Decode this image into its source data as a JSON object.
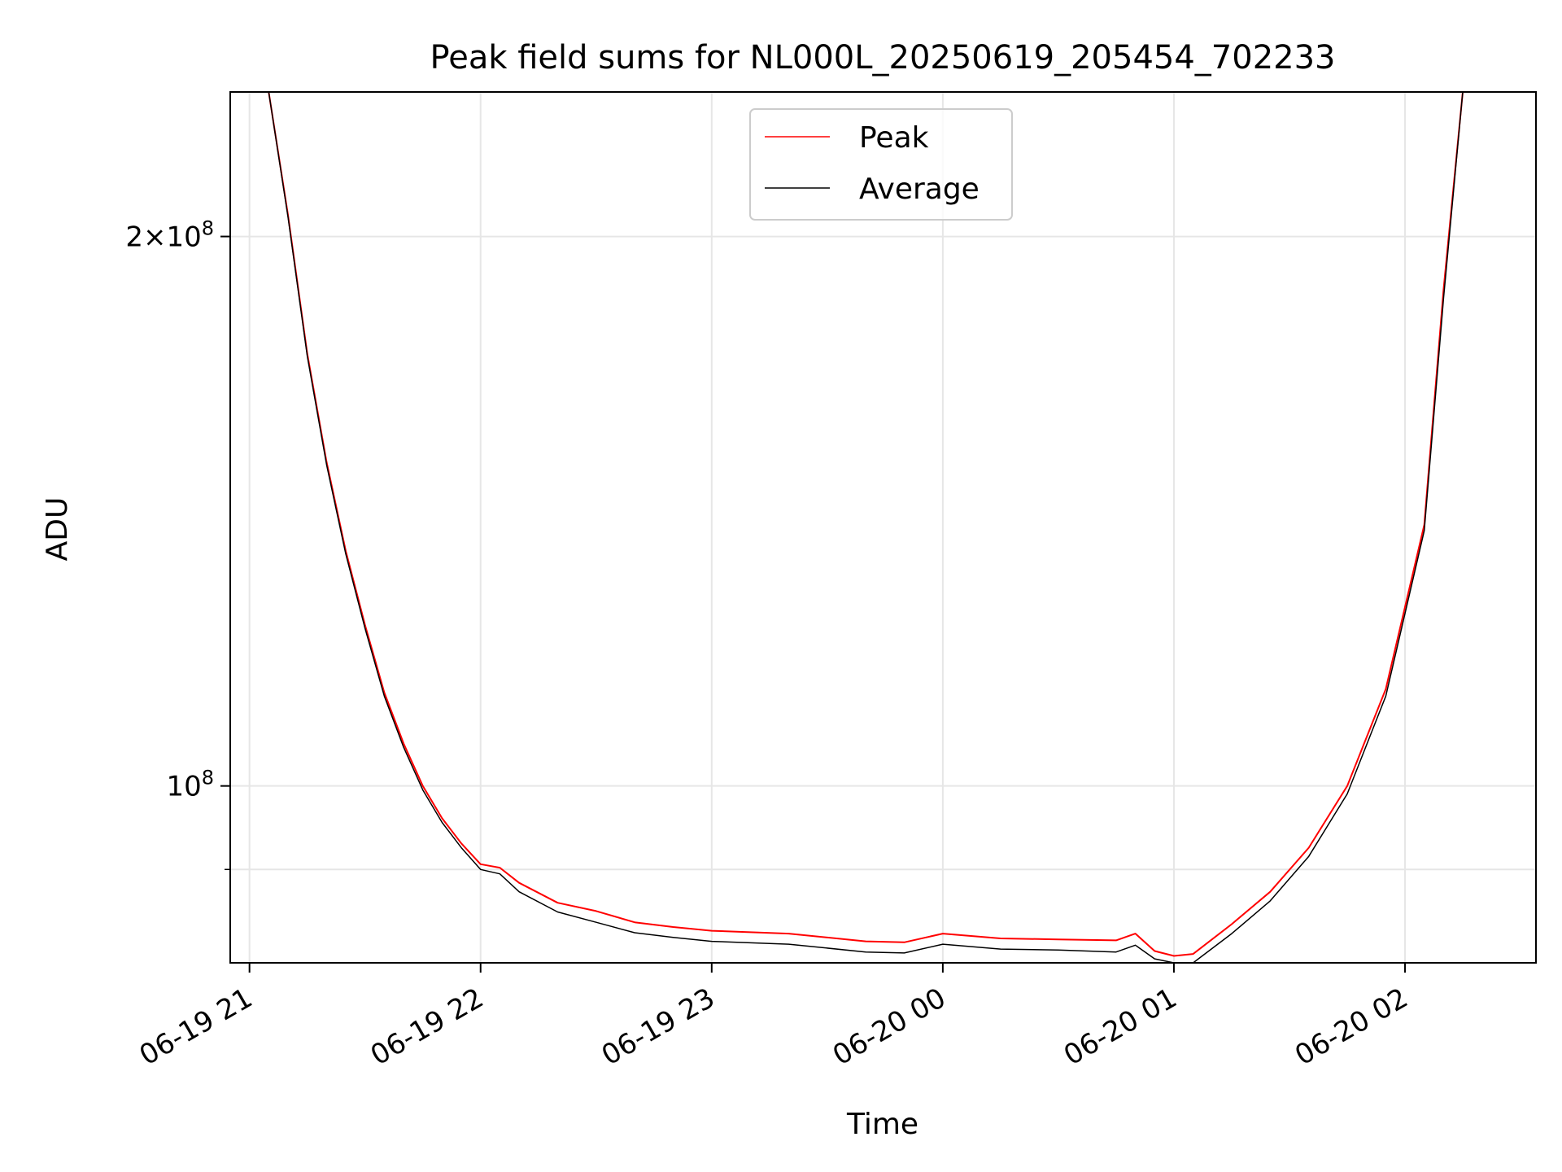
{
  "chart_data": {
    "type": "line",
    "title": "Peak field sums for NL000L_20250619_205454_702233",
    "xlabel": "Time",
    "ylabel": "ADU",
    "y_scale": "log",
    "ylim": [
      80000000,
      240000000
    ],
    "xlim": [
      "2025-06-19 20:55",
      "2025-06-20 02:34"
    ],
    "x_ticks": [
      "2025-06-19 21:00",
      "2025-06-19 22:00",
      "2025-06-19 23:00",
      "2025-06-20 00:00",
      "2025-06-20 01:00",
      "2025-06-20 02:00"
    ],
    "x_tick_labels": [
      "06-19 21",
      "06-19 22",
      "06-19 23",
      "06-20 00",
      "06-20 01",
      "06-20 02"
    ],
    "y_major_ticks": [
      100000000,
      200000000
    ],
    "y_tick_labels": [
      "10^8",
      "2×10^8"
    ],
    "y_minor_ticks": [
      90000000
    ],
    "grid": true,
    "legend_position": "top-center",
    "colors": {
      "Peak": "#ff0000",
      "Average": "#000000",
      "grid": "#e6e6e6"
    },
    "series": [
      {
        "name": "Average",
        "x": [
          "2025-06-19 21:05",
          "2025-06-19 21:10",
          "2025-06-19 21:15",
          "2025-06-19 21:20",
          "2025-06-19 21:25",
          "2025-06-19 21:30",
          "2025-06-19 21:35",
          "2025-06-19 21:40",
          "2025-06-19 21:45",
          "2025-06-19 21:50",
          "2025-06-19 21:55",
          "2025-06-19 22:00",
          "2025-06-19 22:05",
          "2025-06-19 22:10",
          "2025-06-19 22:20",
          "2025-06-19 22:30",
          "2025-06-19 22:40",
          "2025-06-19 22:50",
          "2025-06-19 23:00",
          "2025-06-19 23:20",
          "2025-06-19 23:40",
          "2025-06-19 23:50",
          "2025-06-20 00:00",
          "2025-06-20 00:15",
          "2025-06-20 00:30",
          "2025-06-20 00:45",
          "2025-06-20 00:50",
          "2025-06-20 00:55",
          "2025-06-20 01:00",
          "2025-06-20 01:05",
          "2025-06-20 01:15",
          "2025-06-20 01:25",
          "2025-06-20 01:35",
          "2025-06-20 01:45",
          "2025-06-20 01:55",
          "2025-06-20 02:05",
          "2025-06-20 02:10",
          "2025-06-20 02:15"
        ],
        "values": [
          240000000,
          205000000,
          172000000,
          150000000,
          134000000,
          122000000,
          112000000,
          105000000,
          99500000,
          95500000,
          92500000,
          90000000,
          89500000,
          87500000,
          85300000,
          84200000,
          83100000,
          82600000,
          82200000,
          81900000,
          81100000,
          81000000,
          81900000,
          81400000,
          81300000,
          81100000,
          81800000,
          80400000,
          80000000,
          80000000,
          83000000,
          86500000,
          91500000,
          99000000,
          112000000,
          138000000,
          185000000,
          240000000
        ]
      },
      {
        "name": "Peak",
        "x": [
          "2025-06-19 21:05",
          "2025-06-19 21:10",
          "2025-06-19 21:15",
          "2025-06-19 21:20",
          "2025-06-19 21:25",
          "2025-06-19 21:30",
          "2025-06-19 21:35",
          "2025-06-19 21:40",
          "2025-06-19 21:45",
          "2025-06-19 21:50",
          "2025-06-19 21:55",
          "2025-06-19 22:00",
          "2025-06-19 22:05",
          "2025-06-19 22:10",
          "2025-06-19 22:20",
          "2025-06-19 22:30",
          "2025-06-19 22:40",
          "2025-06-19 22:50",
          "2025-06-19 23:00",
          "2025-06-19 23:20",
          "2025-06-19 23:40",
          "2025-06-19 23:50",
          "2025-06-20 00:00",
          "2025-06-20 00:15",
          "2025-06-20 00:30",
          "2025-06-20 00:45",
          "2025-06-20 00:50",
          "2025-06-20 00:55",
          "2025-06-20 01:00",
          "2025-06-20 01:05",
          "2025-06-20 01:15",
          "2025-06-20 01:25",
          "2025-06-20 01:35",
          "2025-06-20 01:45",
          "2025-06-20 01:55",
          "2025-06-20 02:05",
          "2025-06-20 02:10",
          "2025-06-20 02:15"
        ],
        "values": [
          240000000,
          205500000,
          172500000,
          150500000,
          134500000,
          122500000,
          112500000,
          105500000,
          100000000,
          96000000,
          93000000,
          90600000,
          90200000,
          88500000,
          86300000,
          85400000,
          84200000,
          83700000,
          83300000,
          83000000,
          82200000,
          82100000,
          83000000,
          82500000,
          82400000,
          82300000,
          83000000,
          81200000,
          80700000,
          80900000,
          84000000,
          87500000,
          92500000,
          100000000,
          113000000,
          139000000,
          187000000,
          240000000
        ]
      }
    ]
  }
}
